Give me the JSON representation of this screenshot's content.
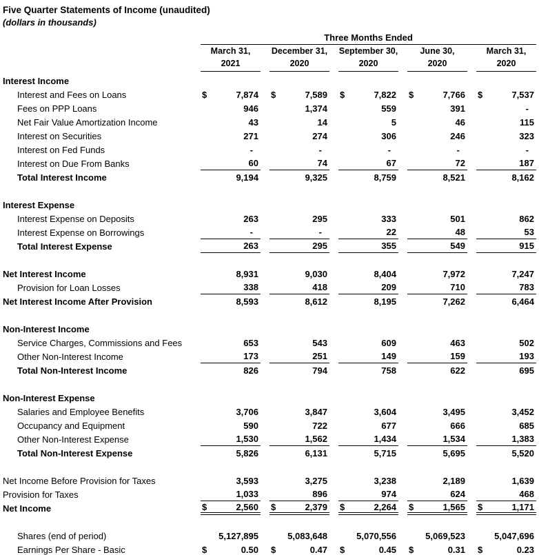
{
  "document": {
    "title": "Five Quarter Statements of Income (unaudited)",
    "subtitle": "(dollars in thousands)"
  },
  "colors": {
    "text": "#000000",
    "background": "#ffffff",
    "rule": "#000000"
  },
  "table": {
    "period_header": "Three Months Ended",
    "columns": [
      {
        "line1": "March 31,",
        "line2": "2021"
      },
      {
        "line1": "December 31,",
        "line2": "2020"
      },
      {
        "line1": "September 30,",
        "line2": "2020"
      },
      {
        "line1": "June 30,",
        "line2": "2020"
      },
      {
        "line1": "March 31,",
        "line2": "2020"
      }
    ],
    "rows": [
      {
        "label": "Interest Income",
        "indent": 0,
        "bold": true
      },
      {
        "label": "Interest and Fees on Loans",
        "indent": 1,
        "dollar": true,
        "values": [
          "7,874",
          "7,589",
          "7,822",
          "7,766",
          "7,537"
        ]
      },
      {
        "label": "Fees on PPP Loans",
        "indent": 1,
        "values": [
          "946",
          "1,374",
          "559",
          "391",
          "-"
        ]
      },
      {
        "label": "Net Fair Value Amortization Income",
        "indent": 1,
        "values": [
          "43",
          "14",
          "5",
          "46",
          "115"
        ]
      },
      {
        "label": "Interest on Securities",
        "indent": 1,
        "values": [
          "271",
          "274",
          "306",
          "246",
          "323"
        ]
      },
      {
        "label": "Interest on Fed Funds",
        "indent": 1,
        "values": [
          "-",
          "-",
          "-",
          "-",
          "-"
        ]
      },
      {
        "label": "Interest on Due From Banks",
        "indent": 1,
        "values": [
          "60",
          "74",
          "67",
          "72",
          "187"
        ],
        "rule": "single"
      },
      {
        "label": "Total Interest Income",
        "indent": 1,
        "bold": true,
        "values": [
          "9,194",
          "9,325",
          "8,759",
          "8,521",
          "8,162"
        ]
      },
      {
        "spacer": true
      },
      {
        "label": "Interest Expense",
        "indent": 0,
        "bold": true
      },
      {
        "label": "Interest Expense on Deposits",
        "indent": 1,
        "values": [
          "263",
          "295",
          "333",
          "501",
          "862"
        ]
      },
      {
        "label": "Interest Expense on Borrowings",
        "indent": 1,
        "values": [
          "-",
          "-",
          "22",
          "48",
          "53"
        ],
        "rule": "single"
      },
      {
        "label": "Total Interest Expense",
        "indent": 1,
        "bold": true,
        "values": [
          "263",
          "295",
          "355",
          "549",
          "915"
        ],
        "rule": "single"
      },
      {
        "spacer": true
      },
      {
        "label": "Net Interest Income",
        "indent": 0,
        "bold": true,
        "values": [
          "8,931",
          "9,030",
          "8,404",
          "7,972",
          "7,247"
        ]
      },
      {
        "label": "Provision for Loan Losses",
        "indent": 1,
        "values": [
          "338",
          "418",
          "209",
          "710",
          "783"
        ],
        "rule": "single"
      },
      {
        "label": "Net Interest Income After Provision",
        "indent": 0,
        "bold": true,
        "values": [
          "8,593",
          "8,612",
          "8,195",
          "7,262",
          "6,464"
        ]
      },
      {
        "spacer": true
      },
      {
        "label": "Non-Interest Income",
        "indent": 0,
        "bold": true
      },
      {
        "label": "Service Charges, Commissions and Fees",
        "indent": 1,
        "values": [
          "653",
          "543",
          "609",
          "463",
          "502"
        ]
      },
      {
        "label": "Other Non-Interest Income",
        "indent": 1,
        "values": [
          "173",
          "251",
          "149",
          "159",
          "193"
        ],
        "rule": "single"
      },
      {
        "label": "Total Non-Interest Income",
        "indent": 1,
        "bold": true,
        "values": [
          "826",
          "794",
          "758",
          "622",
          "695"
        ]
      },
      {
        "spacer": true
      },
      {
        "label": "Non-Interest Expense",
        "indent": 0,
        "bold": true
      },
      {
        "label": "Salaries and Employee Benefits",
        "indent": 1,
        "values": [
          "3,706",
          "3,847",
          "3,604",
          "3,495",
          "3,452"
        ]
      },
      {
        "label": "Occupancy and Equipment",
        "indent": 1,
        "values": [
          "590",
          "722",
          "677",
          "666",
          "685"
        ]
      },
      {
        "label": "Other Non-Interest Expense",
        "indent": 1,
        "values": [
          "1,530",
          "1,562",
          "1,434",
          "1,534",
          "1,383"
        ],
        "rule": "single"
      },
      {
        "label": "Total Non-Interest Expense",
        "indent": 1,
        "bold": true,
        "values": [
          "5,826",
          "6,131",
          "5,715",
          "5,695",
          "5,520"
        ]
      },
      {
        "spacer": true
      },
      {
        "label": "Net Income Before Provision for Taxes",
        "indent": 0,
        "values": [
          "3,593",
          "3,275",
          "3,238",
          "2,189",
          "1,639"
        ]
      },
      {
        "label": "Provision for Taxes",
        "indent": 0,
        "values": [
          "1,033",
          "896",
          "974",
          "624",
          "468"
        ],
        "rule": "single"
      },
      {
        "label": "Net Income",
        "indent": 0,
        "bold": true,
        "dollar": true,
        "values": [
          "2,560",
          "2,379",
          "2,264",
          "1,565",
          "1,171"
        ],
        "rule": "double"
      },
      {
        "spacer": true
      },
      {
        "label": "Shares (end of period)",
        "indent": 1,
        "values": [
          "5,127,895",
          "5,083,648",
          "5,070,556",
          "5,069,523",
          "5,047,696"
        ]
      },
      {
        "label": "Earnings Per Share - Basic",
        "indent": 1,
        "dollar": true,
        "values": [
          "0.50",
          "0.47",
          "0.45",
          "0.31",
          "0.23"
        ]
      }
    ]
  }
}
